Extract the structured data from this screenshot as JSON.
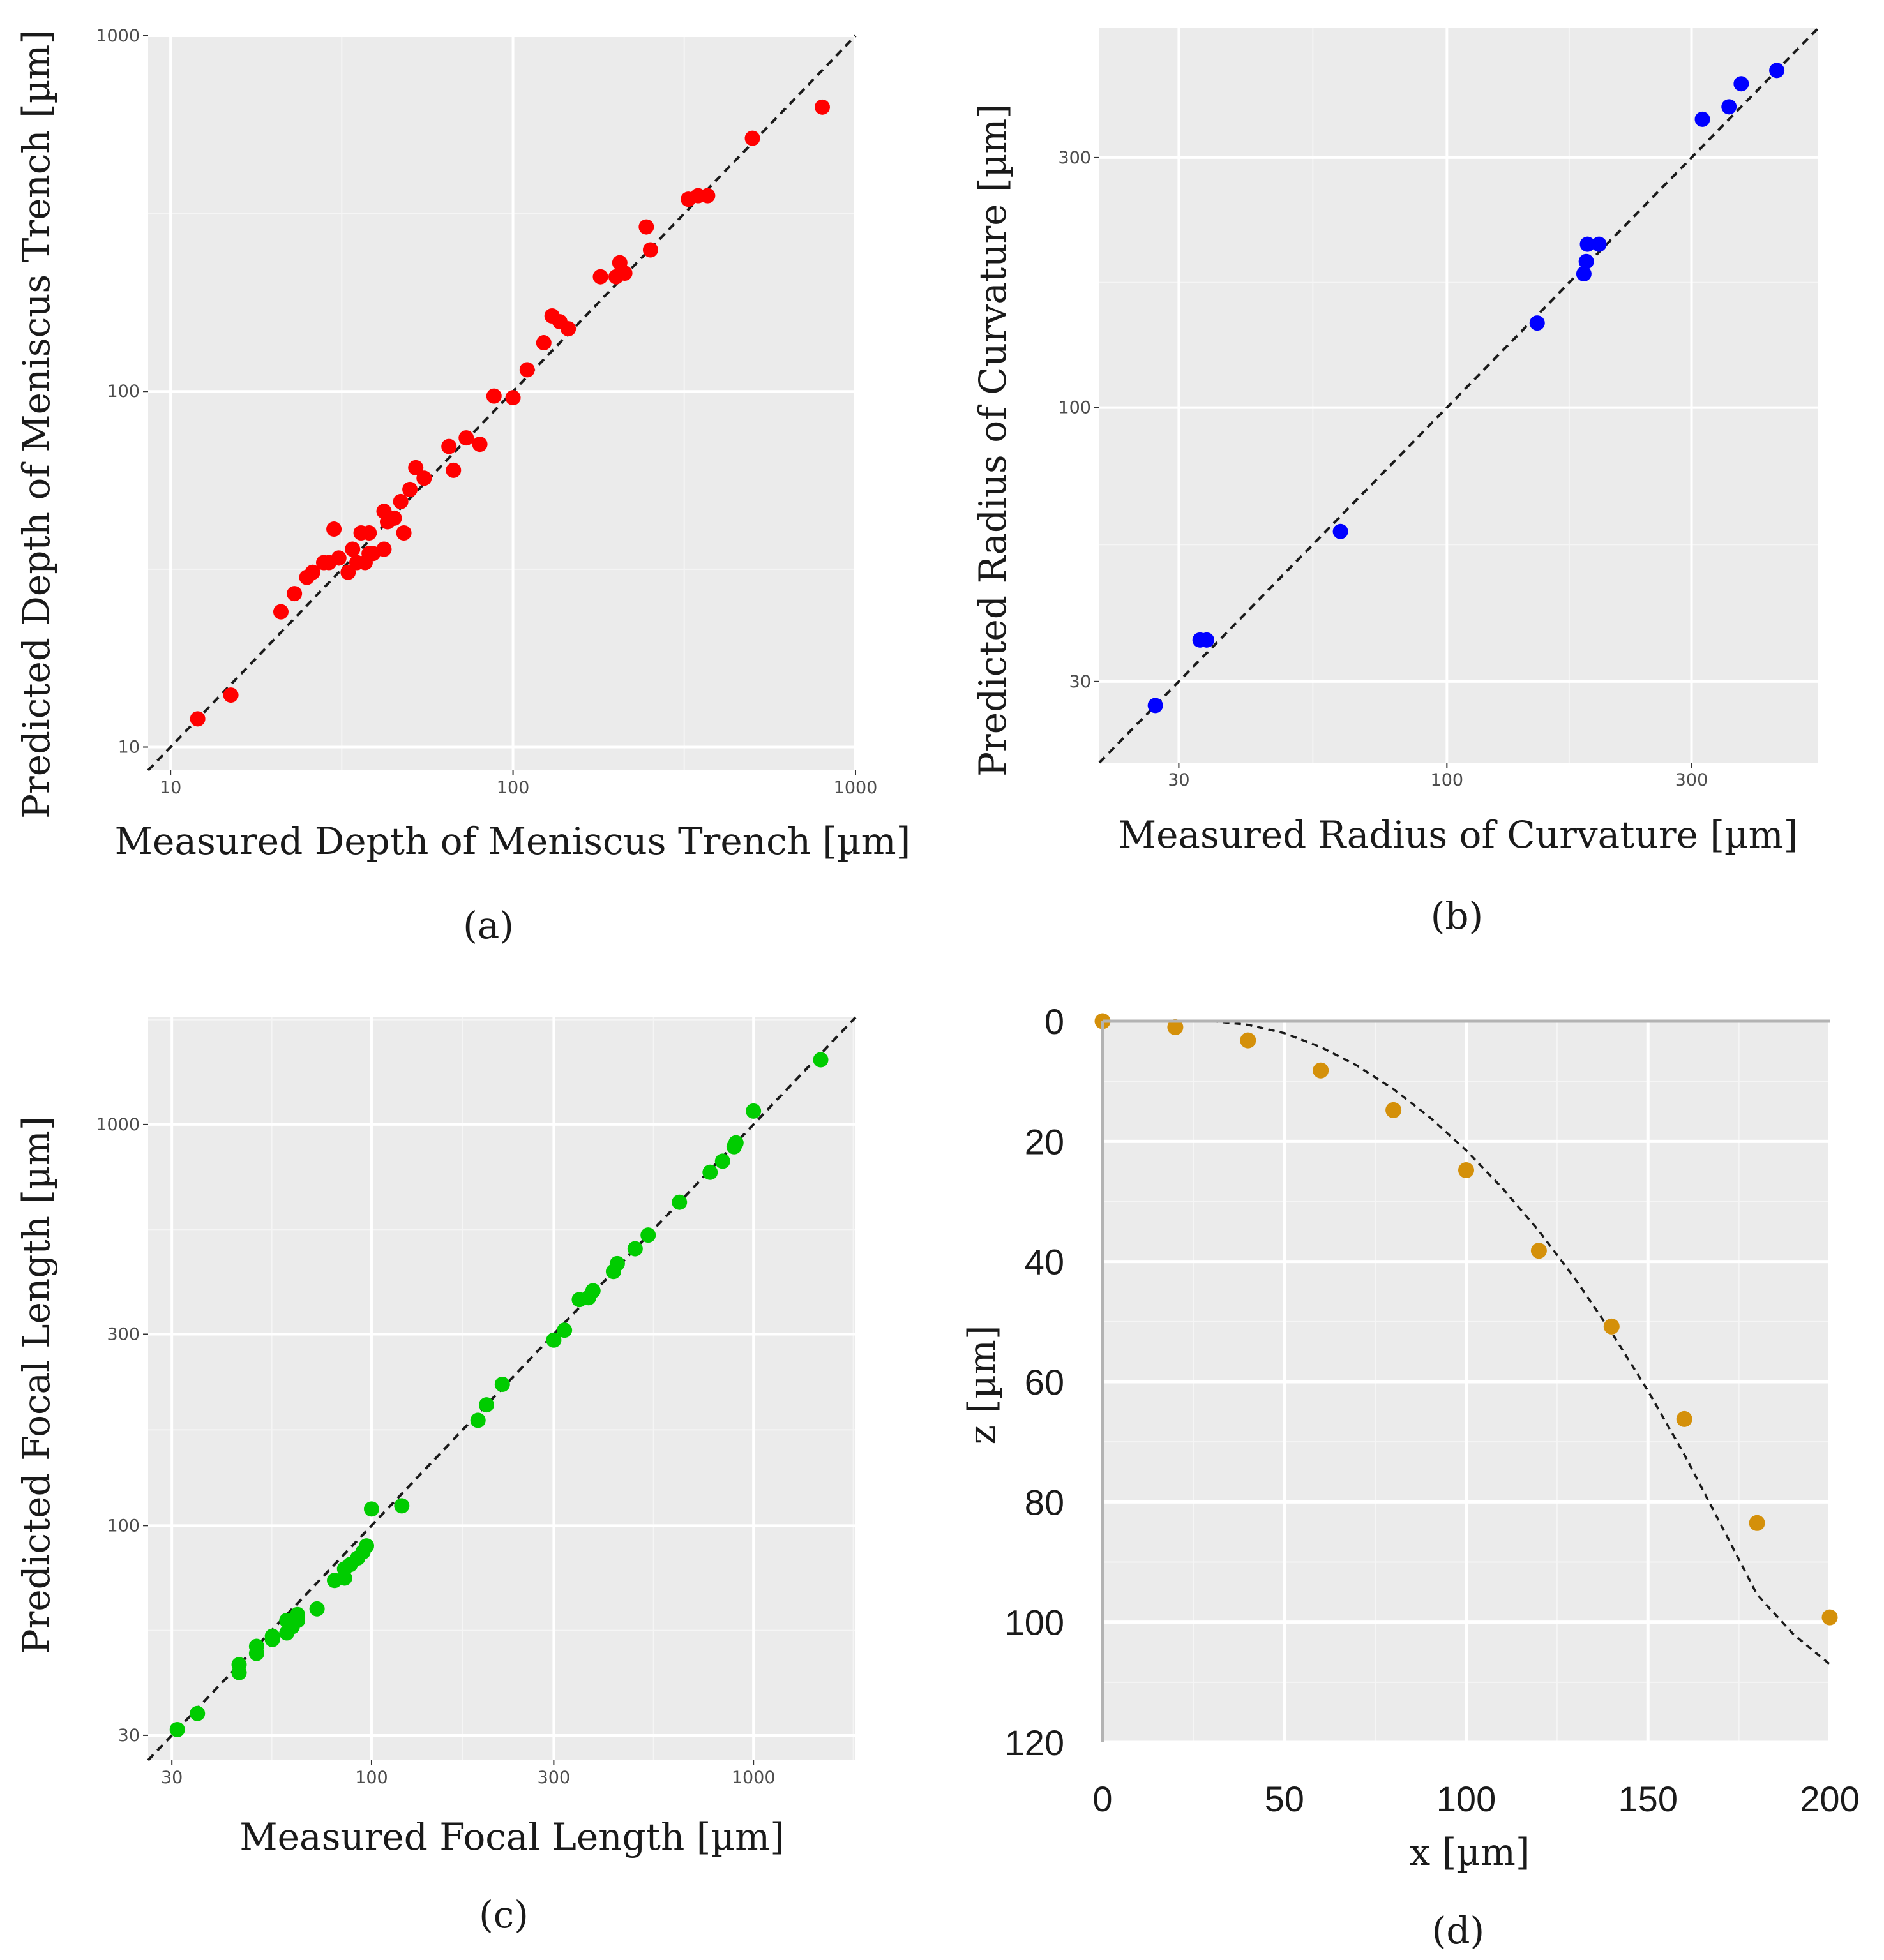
{
  "chart_data": [
    {
      "panel": "a",
      "type": "scatter",
      "scale": "log",
      "xlabel": "Measured Depth of Meniscus Trench [µm]",
      "ylabel": "Predicted Depth of Meniscus Trench [µm]",
      "panel_label": "(a)",
      "xlim": [
        8.6,
        1000
      ],
      "ylim": [
        8.6,
        1000
      ],
      "xticks": [
        10,
        100,
        1000
      ],
      "yticks": [
        10,
        100,
        1000
      ],
      "xtick_labels": [
        "10",
        "100",
        "1000"
      ],
      "ytick_labels": [
        "10",
        "100",
        "1000"
      ],
      "reference_line": "y = x (dashed)",
      "point_color": "#ff0000",
      "series": [
        {
          "name": "Depth of Meniscus Trench",
          "x": [
            12,
            15,
            21,
            23,
            25,
            26,
            28,
            29,
            30,
            31,
            31,
            33,
            34,
            35,
            36,
            37,
            38,
            38,
            39,
            42,
            42,
            43,
            45,
            47,
            48,
            50,
            52,
            55,
            65,
            67,
            73,
            80,
            88,
            100,
            110,
            123,
            130,
            137,
            145,
            180,
            200,
            205,
            212,
            245,
            252,
            325,
            347,
            370,
            500,
            800
          ],
          "y": [
            12,
            14,
            24,
            27,
            30,
            31,
            33,
            33,
            41,
            34,
            34,
            31,
            36,
            33,
            40,
            33,
            40,
            35,
            35,
            36,
            46,
            43,
            44,
            49,
            40,
            53,
            61,
            57,
            70,
            60,
            74,
            71,
            97,
            96,
            115,
            137,
            163,
            157,
            150,
            210,
            210,
            230,
            215,
            290,
            250,
            347,
            355,
            355,
            515,
            630
          ]
        }
      ]
    },
    {
      "panel": "b",
      "type": "scatter",
      "scale": "log",
      "xlabel": "Measured Radius of Curvature [µm]",
      "ylabel": "Predicted Radius of Curvature [µm]",
      "panel_label": "(b)",
      "xlim": [
        21,
        530
      ],
      "ylim": [
        21,
        530
      ],
      "xticks": [
        30,
        100,
        300
      ],
      "yticks": [
        30,
        100,
        300
      ],
      "xtick_labels": [
        "30",
        "100",
        "300"
      ],
      "ytick_labels": [
        "30",
        "100",
        "300"
      ],
      "reference_line": "y = x (dashed)",
      "point_color": "#0000ff",
      "series": [
        {
          "name": "Radius of Curvature",
          "x": [
            27,
            33,
            34,
            62,
            150,
            185,
            187,
            188,
            198,
            315,
            355,
            375,
            440
          ],
          "y": [
            27,
            36,
            36,
            58,
            145,
            180,
            190,
            205,
            205,
            355,
            375,
            415,
            440
          ]
        }
      ]
    },
    {
      "panel": "c",
      "type": "scatter",
      "scale": "log",
      "xlabel": "Measured Focal Length [µm]",
      "ylabel": "Predicted Focal Length [µm]",
      "panel_label": "(c)",
      "xlim": [
        26,
        1850
      ],
      "ylim": [
        26,
        1850
      ],
      "xticks": [
        30,
        100,
        300,
        1000
      ],
      "yticks": [
        30,
        100,
        300,
        1000
      ],
      "xtick_labels": [
        "30",
        "100",
        "300",
        "1000"
      ],
      "ytick_labels": [
        "30",
        "100",
        "300",
        "1000"
      ],
      "reference_line": "y = x (dashed)",
      "point_color": "#00cc00",
      "series": [
        {
          "name": "Focal Length",
          "x": [
            31,
            35,
            45,
            45,
            50,
            50,
            55,
            55,
            60,
            60,
            62,
            64,
            64,
            72,
            80,
            85,
            85,
            88,
            92,
            95,
            97,
            100,
            120,
            190,
            200,
            220,
            300,
            320,
            350,
            370,
            380,
            430,
            440,
            490,
            530,
            640,
            770,
            830,
            890,
            900,
            1000,
            1500
          ],
          "y": [
            31,
            34,
            43,
            45,
            48,
            50,
            52,
            53,
            54,
            58,
            56,
            58,
            60,
            62,
            73,
            74,
            78,
            80,
            83,
            86,
            89,
            110,
            112,
            183,
            200,
            225,
            290,
            307,
            366,
            370,
            385,
            430,
            450,
            490,
            530,
            640,
            760,
            810,
            880,
            900,
            1080,
            1450
          ]
        }
      ]
    },
    {
      "panel": "d",
      "type": "scatter",
      "scale": "linear",
      "xlabel": "x [µm]",
      "ylabel": "z [µm]",
      "panel_label": "(d)",
      "xlim": [
        0,
        200
      ],
      "ylim": [
        120,
        0
      ],
      "y_inverted": true,
      "xticks": [
        0,
        50,
        100,
        150,
        200
      ],
      "yticks": [
        0,
        20,
        40,
        60,
        80,
        100,
        120
      ],
      "xtick_labels": [
        "0",
        "50",
        "100",
        "150",
        "200"
      ],
      "ytick_labels": [
        "0",
        "20",
        "40",
        "60",
        "80",
        "100",
        "120"
      ],
      "point_color": "#d4900a",
      "series": [
        {
          "name": "Measured profile",
          "x": [
            0,
            20,
            40,
            60,
            80,
            100,
            120,
            140,
            160,
            180,
            200
          ],
          "y": [
            0,
            1,
            3.2,
            8.2,
            14.8,
            24.8,
            38.2,
            50.8,
            66.2,
            83.5,
            99.2
          ]
        }
      ],
      "fit_curve": {
        "name": "Fitted profile (dashed)",
        "x": [
          30,
          40,
          50,
          60,
          70,
          80,
          90,
          100,
          110,
          120,
          130,
          140,
          150,
          160,
          170,
          180,
          190,
          200
        ],
        "y": [
          0,
          0.6,
          2,
          4.3,
          7.4,
          11.3,
          16,
          21.5,
          27.8,
          34.9,
          42.9,
          51.8,
          61.5,
          72.1,
          83.7,
          95.4,
          102,
          107
        ]
      }
    }
  ]
}
